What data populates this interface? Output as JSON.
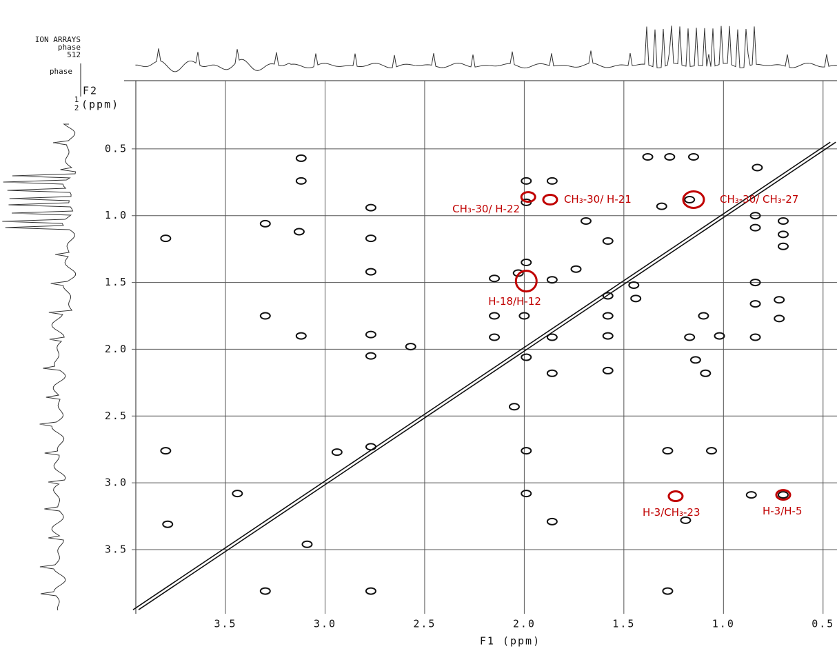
{
  "chart_data": {
    "type": "scatter",
    "corner_text": [
      "ION ARRAYS",
      "phase",
      "512",
      "phase"
    ],
    "y_label_lines": [
      "F2",
      "(ppm)"
    ],
    "phase_digits": [
      "1",
      "2"
    ],
    "x_label": "F1 (ppm)",
    "xlim": [
      3.95,
      0.43
    ],
    "ylim": [
      0,
      3.98
    ],
    "xticks": [
      3.5,
      {
        "value": 3,
        "label": "3.0"
      },
      2.5,
      {
        "value": 2,
        "label": "2.0"
      },
      1.5,
      {
        "value": 1,
        "label": "1.0"
      },
      0.5
    ],
    "yticks": [
      0.5,
      {
        "value": 1,
        "label": "1.0"
      },
      1.5,
      {
        "value": 2,
        "label": "2.0"
      },
      2.5,
      {
        "value": 3,
        "label": "3.0"
      },
      3.5
    ],
    "grid": true,
    "color": "#111111",
    "x": [
      3.12,
      3.12,
      3.8,
      3.3,
      3.13,
      3.3,
      3.12,
      3.8,
      3.79,
      3.3,
      3.09,
      3.44,
      2.94,
      2.77,
      2.77,
      2.77,
      2.77,
      2.77,
      2.77,
      2.77,
      2.57,
      2.05,
      1.99,
      1.99,
      1.99,
      2.15,
      2.03,
      2.15,
      2.15,
      1.99,
      2.0,
      1.86,
      1.86,
      1.86,
      1.86,
      1.99,
      1.99,
      1.86,
      1.58,
      1.58,
      1.58,
      1.58,
      1.44,
      1.45,
      1.38,
      1.27,
      1.15,
      0.83,
      0.84,
      0.84,
      0.84,
      0.84,
      0.84,
      0.7,
      0.7,
      0.7,
      0.86,
      0.7,
      1.28,
      1.06,
      1.09,
      1.14,
      1.1,
      1.02,
      1.17,
      1.69,
      1.58,
      1.74,
      1.31,
      1.17,
      1.28,
      1.19,
      0.72,
      0.72
    ],
    "y": [
      0.57,
      0.74,
      1.17,
      1.06,
      1.12,
      1.75,
      1.9,
      2.76,
      3.31,
      3.81,
      3.46,
      3.08,
      2.77,
      1.17,
      1.42,
      0.94,
      1.89,
      2.05,
      2.73,
      3.81,
      1.98,
      2.43,
      0.74,
      0.9,
      1.35,
      1.47,
      1.43,
      1.75,
      1.91,
      2.06,
      1.75,
      0.74,
      1.48,
      1.91,
      2.18,
      3.08,
      2.76,
      3.29,
      2.16,
      1.75,
      1.9,
      1.6,
      1.62,
      1.52,
      0.56,
      0.56,
      0.56,
      0.64,
      1.0,
      1.09,
      1.5,
      1.66,
      1.91,
      1.04,
      1.14,
      1.23,
      3.09,
      3.09,
      2.76,
      2.76,
      2.18,
      2.08,
      1.75,
      1.9,
      1.91,
      1.04,
      1.19,
      1.4,
      0.93,
      0.88,
      3.81,
      3.28,
      1.63,
      1.77
    ],
    "annotation_color": "#c00000",
    "annotations": [
      {
        "text": "CH₃-30/ H-22",
        "x": 1.98,
        "y": 0.86
      },
      {
        "text": "CH₃-30/ H-21",
        "x": 1.87,
        "y": 0.88
      },
      {
        "text": "CH₃-30/ CH₃-27",
        "x": 1.15,
        "y": 0.88
      },
      {
        "text": "H-18/H-12",
        "x": 1.99,
        "y": 1.49
      },
      {
        "text": "H-3/CH₃-23",
        "x": 1.24,
        "y": 3.1
      },
      {
        "text": "H-3/H-5",
        "x": 0.7,
        "y": 3.09
      }
    ]
  }
}
